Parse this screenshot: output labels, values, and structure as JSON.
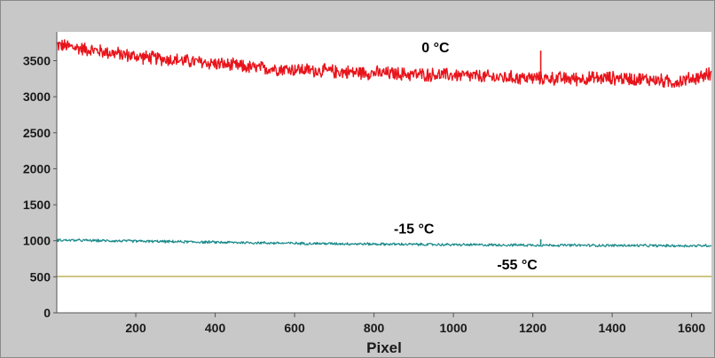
{
  "chart_data": {
    "type": "line",
    "title": "",
    "xlabel": "Pixel",
    "ylabel": "",
    "xlim": [
      1,
      1650
    ],
    "ylim": [
      0,
      3900
    ],
    "xticks": [
      200,
      400,
      600,
      800,
      1000,
      1200,
      1400,
      1600
    ],
    "yticks": [
      0,
      500,
      1000,
      1500,
      2000,
      2500,
      3000,
      3500
    ],
    "grid": false,
    "series": [
      {
        "name": "0 °C",
        "color": "#e8141b",
        "x": [
          1,
          100,
          200,
          300,
          400,
          500,
          600,
          700,
          800,
          900,
          1000,
          1100,
          1200,
          1220,
          1300,
          1400,
          1500,
          1550,
          1600,
          1650
        ],
        "y": [
          3720,
          3640,
          3560,
          3510,
          3460,
          3400,
          3380,
          3350,
          3330,
          3310,
          3300,
          3270,
          3260,
          3640,
          3250,
          3260,
          3240,
          3200,
          3250,
          3320
        ]
      },
      {
        "name": "-15 °C",
        "color": "#1a8a8a",
        "x": [
          1,
          200,
          400,
          600,
          800,
          1000,
          1200,
          1220,
          1400,
          1600,
          1650
        ],
        "y": [
          1010,
          995,
          980,
          965,
          955,
          945,
          940,
          1020,
          935,
          930,
          935
        ]
      },
      {
        "name": "-55 °C",
        "color": "#b5a23a",
        "x": [
          1,
          1650
        ],
        "y": [
          505,
          505
        ]
      }
    ],
    "annotations": [
      {
        "text": "0 °C",
        "x": 920,
        "y": 3620
      },
      {
        "text": "-15 °C",
        "x": 850,
        "y": 1100
      },
      {
        "text": "-55 °C",
        "x": 1110,
        "y": 600
      }
    ]
  }
}
